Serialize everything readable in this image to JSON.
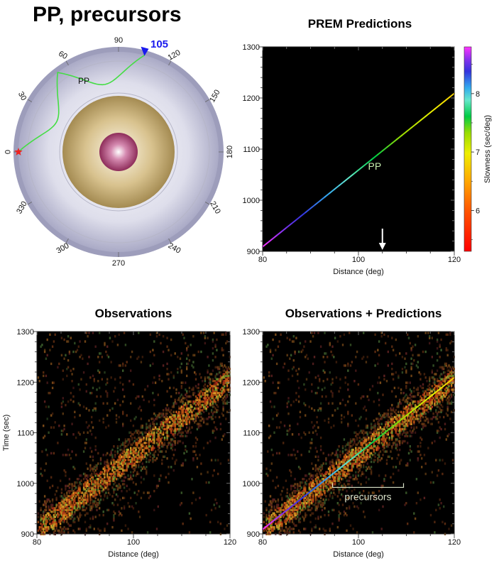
{
  "title": "PP, precursors",
  "circle": {
    "degree_labels": [
      "0",
      "30",
      "60",
      "90",
      "120",
      "150",
      "180",
      "210",
      "240",
      "270",
      "300",
      "330"
    ],
    "receiver_label": "105",
    "ray_label": "PP",
    "colors": {
      "mantle": "#c9c9dc",
      "outer_core": "#b8a06a",
      "inner_core": "#a8456f",
      "ray": "#44dd44",
      "source": "#ee2222",
      "receiver": "#1a1aee"
    }
  },
  "chart_data": [
    {
      "type": "line",
      "title": "PREM Predictions",
      "xlabel": "Distance (deg)",
      "ylabel": "",
      "xlim": [
        80,
        120
      ],
      "ylim": [
        900,
        1300
      ],
      "xticks": [
        "80",
        "100",
        "120"
      ],
      "yticks": [
        "900",
        "1000",
        "1100",
        "1200",
        "1300"
      ],
      "series": [
        {
          "name": "PP",
          "x": [
            80,
            120
          ],
          "y": [
            909,
            1209
          ]
        }
      ],
      "annotations": [
        {
          "text": "PP",
          "x": 102,
          "y": 1060
        },
        {
          "text": "arrow",
          "x": 105,
          "y": 900
        }
      ],
      "colorbar": {
        "label": "Slowness (sec/deg)",
        "ticks": [
          "6",
          "7",
          "8"
        ],
        "range": [
          5.3,
          8.8
        ]
      }
    },
    {
      "type": "heatmap",
      "title": "Observations",
      "xlabel": "Distance (deg)",
      "ylabel": "Time (sec)",
      "xlim": [
        80,
        120
      ],
      "ylim": [
        900,
        1300
      ],
      "xticks": [
        "80",
        "100",
        "120"
      ],
      "yticks": [
        "900",
        "1000",
        "1100",
        "1200",
        "1300"
      ]
    },
    {
      "type": "heatmap",
      "title": "Observations + Predictions",
      "xlabel": "Distance (deg)",
      "ylabel": "",
      "xlim": [
        80,
        120
      ],
      "ylim": [
        900,
        1300
      ],
      "xticks": [
        "80",
        "100",
        "120"
      ],
      "yticks": [
        "900",
        "1000",
        "1100",
        "1200",
        "1300"
      ],
      "series": [
        {
          "name": "PP",
          "x": [
            80,
            120
          ],
          "y": [
            909,
            1209
          ]
        }
      ],
      "annotations": [
        {
          "text": "precursors",
          "x": 102,
          "y": 992
        }
      ]
    }
  ]
}
